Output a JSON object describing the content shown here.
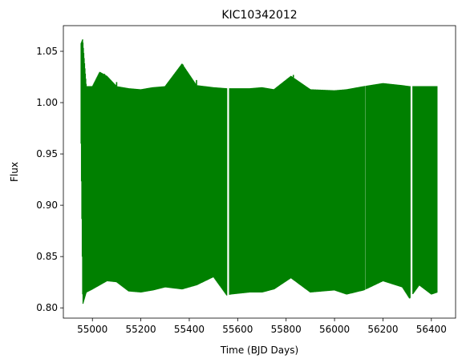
{
  "chart_data": {
    "type": "line",
    "title": "KIC10342012",
    "xlabel": "Time (BJD Days)",
    "ylabel": "Flux",
    "xlim": [
      54880,
      56500
    ],
    "ylim": [
      0.79,
      1.075
    ],
    "x_ticks": [
      55000,
      55200,
      55400,
      55600,
      55800,
      56000,
      56200,
      56400
    ],
    "y_ticks": [
      0.8,
      0.85,
      0.9,
      0.95,
      1.0,
      1.05
    ],
    "grid": false,
    "legend": "none",
    "series": [
      {
        "color": "#008000",
        "envelope": [
          {
            "x": 54953,
            "upper": 1.058,
            "lower": 0.96
          },
          {
            "x": 54960,
            "upper": 1.062,
            "lower": 0.803
          },
          {
            "x": 54975,
            "upper": 1.016,
            "lower": 0.815
          },
          {
            "x": 55000,
            "upper": 1.016,
            "lower": 0.818
          },
          {
            "x": 55030,
            "upper": 1.03,
            "lower": 0.822
          },
          {
            "x": 55060,
            "upper": 1.026,
            "lower": 0.826
          },
          {
            "x": 55100,
            "upper": 1.016,
            "lower": 0.825
          },
          {
            "x": 55150,
            "upper": 1.014,
            "lower": 0.816
          },
          {
            "x": 55200,
            "upper": 1.013,
            "lower": 0.815
          },
          {
            "x": 55250,
            "upper": 1.015,
            "lower": 0.817
          },
          {
            "x": 55300,
            "upper": 1.016,
            "lower": 0.82
          },
          {
            "x": 55370,
            "upper": 1.038,
            "lower": 0.818
          },
          {
            "x": 55430,
            "upper": 1.017,
            "lower": 0.822
          },
          {
            "x": 55500,
            "upper": 1.015,
            "lower": 0.83
          },
          {
            "x": 55555,
            "upper": 1.014,
            "lower": 0.812
          },
          {
            "x": 55570,
            "upper": 1.014,
            "lower": 0.813
          },
          {
            "x": 55650,
            "upper": 1.014,
            "lower": 0.815
          },
          {
            "x": 55700,
            "upper": 1.015,
            "lower": 0.815
          },
          {
            "x": 55750,
            "upper": 1.013,
            "lower": 0.818
          },
          {
            "x": 55820,
            "upper": 1.026,
            "lower": 0.829
          },
          {
            "x": 55900,
            "upper": 1.013,
            "lower": 0.815
          },
          {
            "x": 56000,
            "upper": 1.012,
            "lower": 0.817
          },
          {
            "x": 56050,
            "upper": 1.013,
            "lower": 0.813
          },
          {
            "x": 56120,
            "upper": 1.016,
            "lower": 0.817
          },
          {
            "x": 56200,
            "upper": 1.019,
            "lower": 0.826
          },
          {
            "x": 56280,
            "upper": 1.017,
            "lower": 0.82
          },
          {
            "x": 56310,
            "upper": 1.016,
            "lower": 0.809
          },
          {
            "x": 56350,
            "upper": 1.016,
            "lower": 0.822
          },
          {
            "x": 56400,
            "upper": 1.016,
            "lower": 0.813
          },
          {
            "x": 56425,
            "upper": 1.016,
            "lower": 0.815
          }
        ],
        "spikes": [
          {
            "x": 55030,
            "y": 1.03
          },
          {
            "x": 55050,
            "y": 1.028
          },
          {
            "x": 55100,
            "y": 1.02
          },
          {
            "x": 55375,
            "y": 1.037
          },
          {
            "x": 55430,
            "y": 1.022
          },
          {
            "x": 55830,
            "y": 1.027
          }
        ],
        "gaps": [
          {
            "from": 55556,
            "to": 55566
          },
          {
            "from": 56126,
            "to": 56129
          },
          {
            "from": 56313,
            "to": 56322
          }
        ]
      }
    ]
  }
}
